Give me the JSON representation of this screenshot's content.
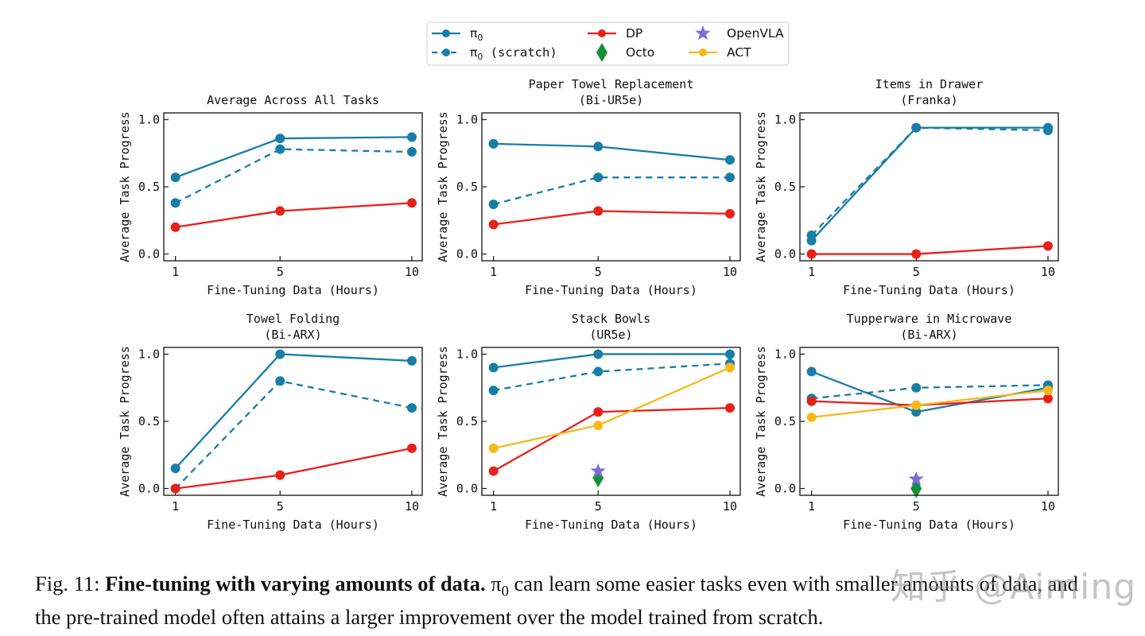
{
  "legend": {
    "items": [
      {
        "key": "pi0",
        "label": "π",
        "sub": "0",
        "suffix": "",
        "color": "#187ea6",
        "style": "solid",
        "marker": "circle"
      },
      {
        "key": "pi0_scratch",
        "label": "π",
        "sub": "0",
        "suffix": " (scratch)",
        "color": "#187ea6",
        "style": "dashed",
        "marker": "circle"
      },
      {
        "key": "dp",
        "label": "DP",
        "sub": "",
        "suffix": "",
        "color": "#e8201a",
        "style": "solid",
        "marker": "circle"
      },
      {
        "key": "octo",
        "label": "Octo",
        "sub": "",
        "suffix": "",
        "color": "#11913a",
        "style": "none",
        "marker": "diamond"
      },
      {
        "key": "openvla",
        "label": "OpenVLA",
        "sub": "",
        "suffix": "",
        "color": "#7b6cd6",
        "style": "none",
        "marker": "star"
      },
      {
        "key": "act",
        "label": "ACT",
        "sub": "",
        "suffix": "",
        "color": "#f7b91a",
        "style": "solid",
        "marker": "circle"
      }
    ]
  },
  "chart_data": [
    {
      "type": "line",
      "title": "Average Across All Tasks",
      "subtitle": "",
      "xlabel": "Fine-Tuning Data (Hours)",
      "ylabel": "Average Task Progress",
      "categories": [
        "1",
        "5",
        "10"
      ],
      "ylim": [
        -0.05,
        1.05
      ],
      "yticks": [
        "0.0",
        "0.5",
        "1.0"
      ],
      "series": [
        {
          "name": "π0",
          "key": "pi0",
          "values": [
            0.57,
            0.86,
            0.87
          ]
        },
        {
          "name": "π0 (scratch)",
          "key": "pi0_scratch",
          "values": [
            0.38,
            0.78,
            0.76
          ]
        },
        {
          "name": "DP",
          "key": "dp",
          "values": [
            0.2,
            0.32,
            0.38
          ]
        }
      ],
      "points": []
    },
    {
      "type": "line",
      "title": "Paper Towel Replacement",
      "subtitle": "(Bi-UR5e)",
      "xlabel": "Fine-Tuning Data (Hours)",
      "ylabel": "Average Task Progress",
      "categories": [
        "1",
        "5",
        "10"
      ],
      "ylim": [
        -0.05,
        1.05
      ],
      "yticks": [
        "0.0",
        "0.5",
        "1.0"
      ],
      "series": [
        {
          "name": "π0",
          "key": "pi0",
          "values": [
            0.82,
            0.8,
            0.7
          ]
        },
        {
          "name": "π0 (scratch)",
          "key": "pi0_scratch",
          "values": [
            0.37,
            0.57,
            0.57
          ]
        },
        {
          "name": "DP",
          "key": "dp",
          "values": [
            0.22,
            0.32,
            0.3
          ]
        }
      ],
      "points": []
    },
    {
      "type": "line",
      "title": "Items in Drawer",
      "subtitle": "(Franka)",
      "xlabel": "Fine-Tuning Data (Hours)",
      "ylabel": "Average Task Progress",
      "categories": [
        "1",
        "5",
        "10"
      ],
      "ylim": [
        -0.05,
        1.05
      ],
      "yticks": [
        "0.0",
        "0.5",
        "1.0"
      ],
      "series": [
        {
          "name": "π0",
          "key": "pi0",
          "values": [
            0.1,
            0.94,
            0.94
          ]
        },
        {
          "name": "π0 (scratch)",
          "key": "pi0_scratch",
          "values": [
            0.14,
            0.94,
            0.92
          ]
        },
        {
          "name": "DP",
          "key": "dp",
          "values": [
            0.0,
            0.0,
            0.06
          ]
        }
      ],
      "points": []
    },
    {
      "type": "line",
      "title": "Towel Folding",
      "subtitle": "(Bi-ARX)",
      "xlabel": "Fine-Tuning Data (Hours)",
      "ylabel": "Average Task Progress",
      "categories": [
        "1",
        "5",
        "10"
      ],
      "ylim": [
        -0.05,
        1.05
      ],
      "yticks": [
        "0.0",
        "0.5",
        "1.0"
      ],
      "series": [
        {
          "name": "π0",
          "key": "pi0",
          "values": [
            0.15,
            1.0,
            0.95
          ]
        },
        {
          "name": "π0 (scratch)",
          "key": "pi0_scratch",
          "values": [
            0.0,
            0.8,
            0.6
          ]
        },
        {
          "name": "DP",
          "key": "dp",
          "values": [
            0.0,
            0.1,
            0.3
          ]
        }
      ],
      "points": []
    },
    {
      "type": "line",
      "title": "Stack Bowls",
      "subtitle": "(UR5e)",
      "xlabel": "Fine-Tuning Data (Hours)",
      "ylabel": "Average Task Progress",
      "categories": [
        "1",
        "5",
        "10"
      ],
      "ylim": [
        -0.05,
        1.05
      ],
      "yticks": [
        "0.0",
        "0.5",
        "1.0"
      ],
      "series": [
        {
          "name": "π0",
          "key": "pi0",
          "values": [
            0.9,
            1.0,
            1.0
          ]
        },
        {
          "name": "π0 (scratch)",
          "key": "pi0_scratch",
          "values": [
            0.73,
            0.87,
            0.93
          ]
        },
        {
          "name": "DP",
          "key": "dp",
          "values": [
            0.13,
            0.57,
            0.6
          ]
        },
        {
          "name": "ACT",
          "key": "act",
          "values": [
            0.3,
            0.47,
            0.9
          ]
        }
      ],
      "points": [
        {
          "name": "Octo",
          "key": "octo",
          "x": "5",
          "value": 0.08
        },
        {
          "name": "OpenVLA",
          "key": "openvla",
          "x": "5",
          "value": 0.13
        }
      ]
    },
    {
      "type": "line",
      "title": "Tupperware in Microwave",
      "subtitle": "(Bi-ARX)",
      "xlabel": "Fine-Tuning Data (Hours)",
      "ylabel": "Average Task Progress",
      "categories": [
        "1",
        "5",
        "10"
      ],
      "ylim": [
        -0.05,
        1.05
      ],
      "yticks": [
        "0.0",
        "0.5",
        "1.0"
      ],
      "series": [
        {
          "name": "π0",
          "key": "pi0",
          "values": [
            0.87,
            0.57,
            0.75
          ]
        },
        {
          "name": "π0 (scratch)",
          "key": "pi0_scratch",
          "values": [
            0.67,
            0.75,
            0.77
          ]
        },
        {
          "name": "DP",
          "key": "dp",
          "values": [
            0.65,
            0.62,
            0.67
          ]
        },
        {
          "name": "ACT",
          "key": "act",
          "values": [
            0.53,
            0.62,
            0.73
          ]
        }
      ],
      "points": [
        {
          "name": "Octo",
          "key": "octo",
          "x": "5",
          "value": 0.0
        },
        {
          "name": "OpenVLA",
          "key": "openvla",
          "x": "5",
          "value": 0.07
        }
      ]
    }
  ],
  "caption": {
    "label": "Fig. 11:",
    "bold": "Fine-tuning with varying amounts of data.",
    "pi": "π",
    "pi_sub": "0",
    "line1_rest": " can learn some easier tasks even with smaller amounts of data, and",
    "line2": "the pre-trained model often attains a larger improvement over the model trained from scratch."
  },
  "watermark": "知乎 @Aiming"
}
